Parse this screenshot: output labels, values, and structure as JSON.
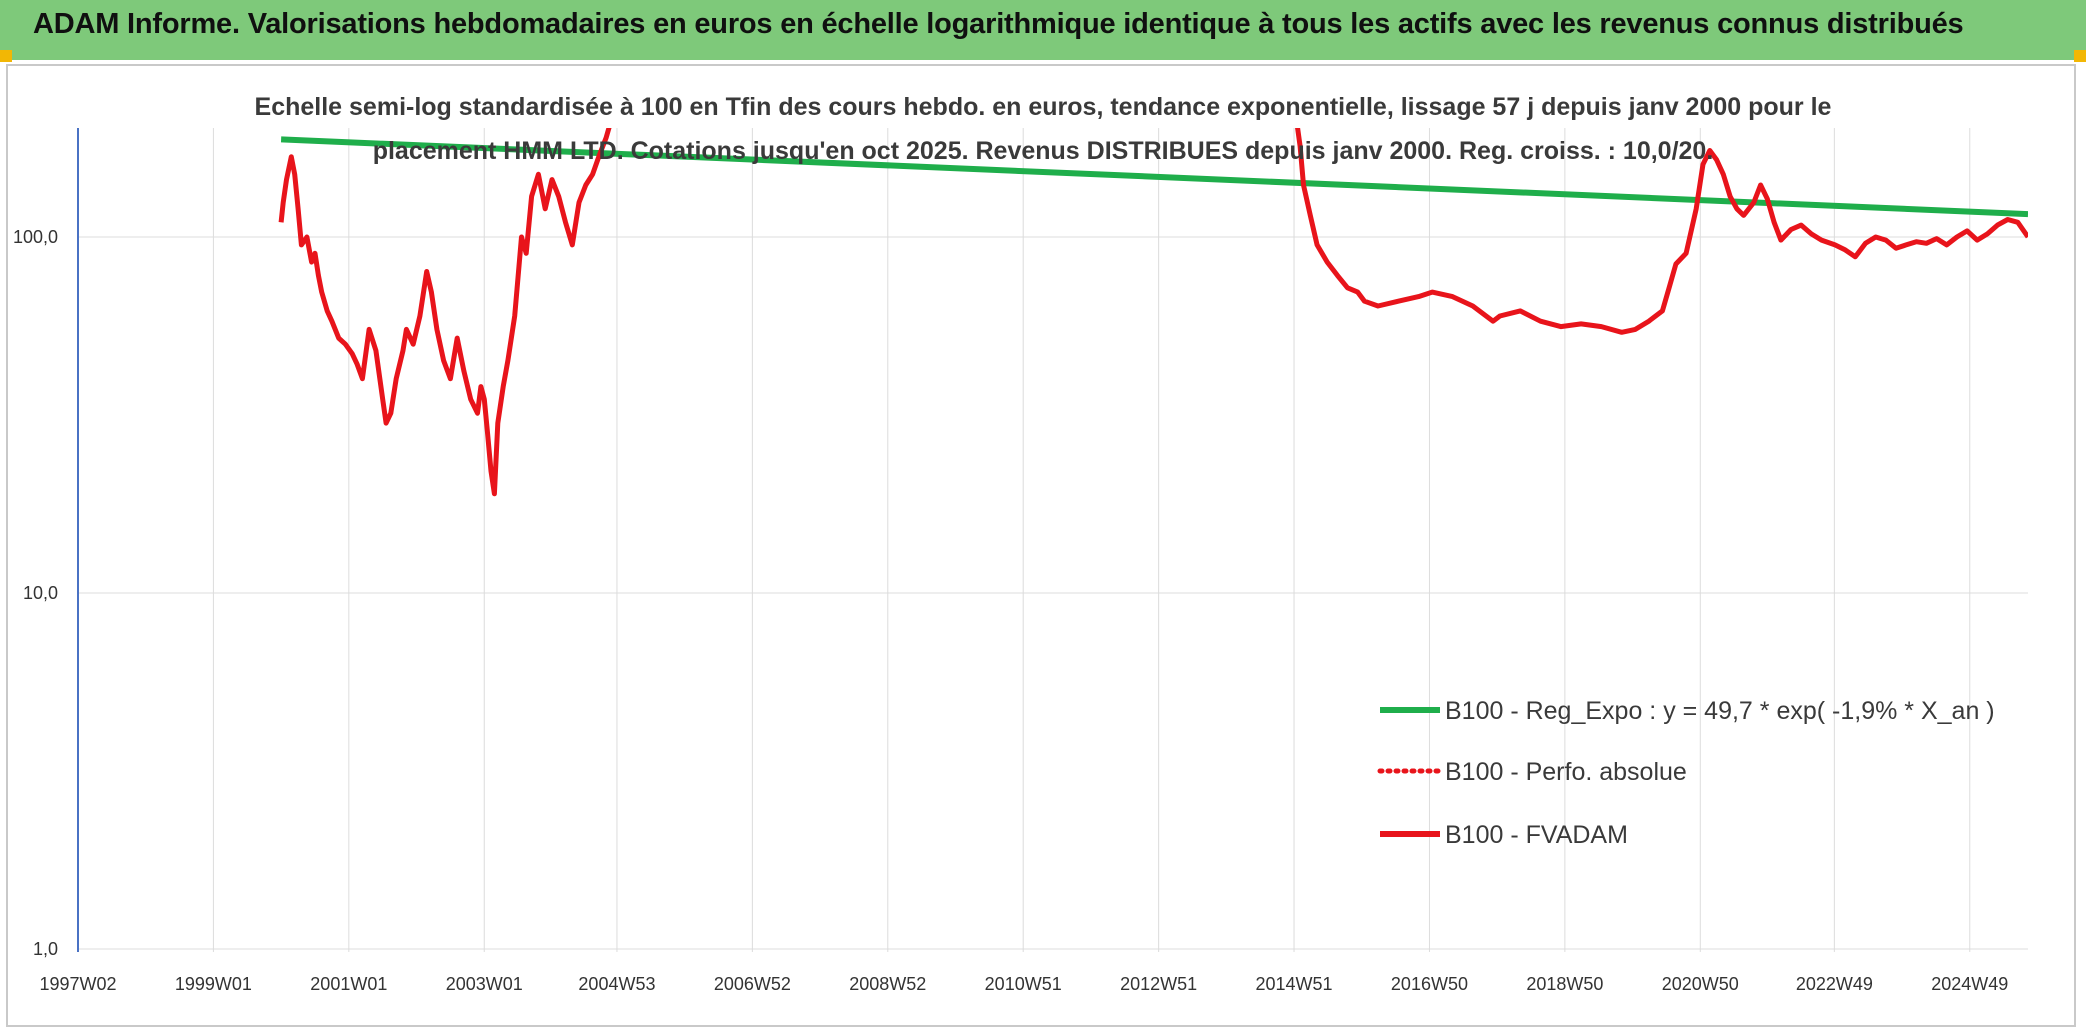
{
  "header": {
    "title": "ADAM Informe. Valorisations hebdomadaires en euros en échelle logarithmique identique à tous les actifs avec les revenus connus distribués"
  },
  "colors": {
    "banner": "#7ec97a",
    "corner_marks": "#f2b705",
    "trend_line": "#1fae4b",
    "fvadam_line": "#e8141b",
    "grid": "#dcdcdc"
  },
  "chart_data": {
    "type": "line",
    "subtitle": [
      "Echelle semi-log standardisée à 100 en Tfin des cours hebdo. en euros, tendance exponentielle, lissage 57 j depuis janv 2000 pour le",
      "placement HMM LTD. Cotations jusqu'en oct 2025. Revenus DISTRIBUES depuis janv 2000. Reg. croiss. : 10,0/20."
    ],
    "y_scale": "log",
    "ylim": [
      1,
      210
    ],
    "y_ticks": [
      1,
      10,
      100
    ],
    "y_tick_labels": [
      "1,0",
      "10,0",
      "100,0"
    ],
    "xlim": [
      1997.0,
      2025.8
    ],
    "x_ticks": [
      1997.0,
      1999.0,
      2001.0,
      2003.0,
      2004.96,
      2006.96,
      2008.96,
      2010.96,
      2012.96,
      2014.96,
      2016.96,
      2018.96,
      2020.96,
      2022.94,
      2024.94
    ],
    "x_tick_labels": [
      "1997W02",
      "1999W01",
      "2001W01",
      "2003W01",
      "2004W53",
      "2006W52",
      "2008W52",
      "2010W51",
      "2012W51",
      "2014W51",
      "2016W50",
      "2018W50",
      "2020W50",
      "2022W49",
      "2024W49"
    ],
    "grid": true,
    "legend_position": "bottom-right",
    "series": [
      {
        "name": "B100 - Reg_Expo : y = 49,7 * exp( -1,9% *  X_an )",
        "style": "solid",
        "color": "#1fae4b",
        "x": [
          2000.0,
          2025.8
        ],
        "y": [
          188,
          116
        ]
      },
      {
        "name": "B100 - Perfo. absolue",
        "style": "dotted",
        "color": "#e8141b",
        "x": [],
        "y": []
      },
      {
        "name": "B100 - FVADAM",
        "style": "solid",
        "color": "#e8141b",
        "x": [
          2000.0,
          2000.03,
          2000.08,
          2000.15,
          2000.2,
          2000.25,
          2000.3,
          2000.38,
          2000.45,
          2000.5,
          2000.55,
          2000.6,
          2000.68,
          2000.75,
          2000.85,
          2000.95,
          2001.05,
          2001.12,
          2001.2,
          2001.3,
          2001.4,
          2001.5,
          2001.55,
          2001.62,
          2001.7,
          2001.8,
          2001.85,
          2001.95,
          2002.05,
          2002.15,
          2002.22,
          2002.3,
          2002.4,
          2002.5,
          2002.6,
          2002.7,
          2002.8,
          2002.9,
          2002.95,
          2003.0,
          2003.05,
          2003.1,
          2003.15,
          2003.2,
          2003.28,
          2003.35,
          2003.45,
          2003.55,
          2003.62,
          2003.7,
          2003.8,
          2003.9,
          2004.0,
          2004.1,
          2004.2,
          2004.3,
          2004.4,
          2004.5,
          2004.6,
          2004.7,
          2004.8,
          2004.85,
          2004.9,
          2015.0,
          2015.05,
          2015.1,
          2015.2,
          2015.3,
          2015.45,
          2015.6,
          2015.75,
          2015.9,
          2016.0,
          2016.2,
          2016.5,
          2016.8,
          2017.0,
          2017.3,
          2017.6,
          2017.9,
          2018.0,
          2018.3,
          2018.6,
          2018.9,
          2019.2,
          2019.5,
          2019.8,
          2020.0,
          2020.2,
          2020.4,
          2020.5,
          2020.6,
          2020.75,
          2020.9,
          2021.0,
          2021.1,
          2021.2,
          2021.3,
          2021.4,
          2021.5,
          2021.6,
          2021.75,
          2021.85,
          2021.95,
          2022.05,
          2022.15,
          2022.3,
          2022.45,
          2022.6,
          2022.75,
          2022.95,
          2023.1,
          2023.25,
          2023.4,
          2023.55,
          2023.7,
          2023.85,
          2024.0,
          2024.15,
          2024.3,
          2024.45,
          2024.6,
          2024.75,
          2024.9,
          2025.05,
          2025.2,
          2025.35,
          2025.5,
          2025.65,
          2025.8
        ],
        "y": [
          110,
          125,
          145,
          168,
          150,
          120,
          95,
          100,
          85,
          90,
          78,
          70,
          62,
          58,
          52,
          50,
          47,
          44,
          40,
          55,
          48,
          35,
          30,
          32,
          40,
          48,
          55,
          50,
          60,
          80,
          70,
          55,
          45,
          40,
          52,
          42,
          35,
          32,
          38,
          35,
          28,
          22,
          19,
          30,
          38,
          45,
          60,
          100,
          90,
          130,
          150,
          120,
          145,
          130,
          110,
          95,
          125,
          140,
          150,
          170,
          190,
          205,
          210,
          210,
          180,
          140,
          115,
          95,
          85,
          78,
          72,
          70,
          66,
          64,
          66,
          68,
          70,
          68,
          64,
          58,
          60,
          62,
          58,
          56,
          57,
          56,
          54,
          55,
          58,
          62,
          72,
          84,
          90,
          120,
          160,
          175,
          165,
          150,
          130,
          120,
          115,
          125,
          140,
          128,
          110,
          98,
          105,
          108,
          102,
          98,
          95,
          92,
          88,
          96,
          100,
          98,
          93,
          95,
          97,
          96,
          99,
          95,
          100,
          104,
          98,
          102,
          108,
          112,
          110,
          100
        ]
      }
    ]
  }
}
